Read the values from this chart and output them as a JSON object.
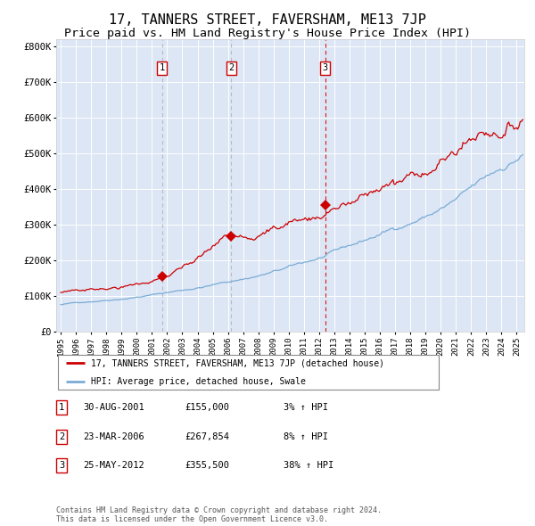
{
  "title": "17, TANNERS STREET, FAVERSHAM, ME13 7JP",
  "subtitle": "Price paid vs. HM Land Registry's House Price Index (HPI)",
  "title_fontsize": 11,
  "subtitle_fontsize": 9.5,
  "background_color": "#dce6f5",
  "red_line_color": "#cc0000",
  "blue_line_color": "#7aacd6",
  "sale_marker_color": "#cc0000",
  "ylim": [
    0,
    820000
  ],
  "ytick_labels": [
    "£0",
    "£100K",
    "£200K",
    "£300K",
    "£400K",
    "£500K",
    "£600K",
    "£700K",
    "£800K"
  ],
  "ytick_values": [
    0,
    100000,
    200000,
    300000,
    400000,
    500000,
    600000,
    700000,
    800000
  ],
  "xmin": 1994.7,
  "xmax": 2025.5,
  "sales": [
    {
      "label": "1",
      "date_num": 2001.66,
      "price": 155000,
      "date_str": "30-AUG-2001",
      "hpi_pct": "3% ↑ HPI"
    },
    {
      "label": "2",
      "date_num": 2006.22,
      "price": 267854,
      "date_str": "23-MAR-2006",
      "hpi_pct": "8% ↑ HPI"
    },
    {
      "label": "3",
      "date_num": 2012.39,
      "price": 355500,
      "date_str": "25-MAY-2012",
      "hpi_pct": "38% ↑ HPI"
    }
  ],
  "legend_line1": "17, TANNERS STREET, FAVERSHAM, ME13 7JP (detached house)",
  "legend_line2": "HPI: Average price, detached house, Swale",
  "footer": "Contains HM Land Registry data © Crown copyright and database right 2024.\nThis data is licensed under the Open Government Licence v3.0.",
  "xtick_years": [
    1995,
    1996,
    1997,
    1998,
    1999,
    2000,
    2001,
    2002,
    2003,
    2004,
    2005,
    2006,
    2007,
    2008,
    2009,
    2010,
    2011,
    2012,
    2013,
    2014,
    2015,
    2016,
    2017,
    2018,
    2019,
    2020,
    2021,
    2022,
    2023,
    2024,
    2025
  ]
}
